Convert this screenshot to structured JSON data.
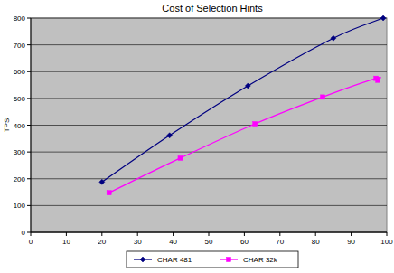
{
  "chart_data": {
    "type": "line",
    "title": "Cost of Selection Hints",
    "y_label": "TPS",
    "xlim": [
      0,
      100
    ],
    "xticks": [
      0,
      10,
      20,
      30,
      40,
      50,
      60,
      70,
      80,
      90,
      100
    ],
    "ylim": [
      0,
      800
    ],
    "yticks": [
      0,
      100,
      200,
      300,
      400,
      500,
      600,
      700,
      800
    ],
    "grid": true,
    "legend": "bottom",
    "series": [
      {
        "name": "CHAR 481",
        "color": "#000080",
        "marker": "diamond",
        "line_style": "solid",
        "x": [
          20,
          39,
          61,
          85,
          99
        ],
        "values": [
          188,
          362,
          547,
          725,
          800
        ]
      },
      {
        "name": "CHAR 32k",
        "color": "#ff00ff",
        "marker": "square",
        "line_style": "solid",
        "x": [
          22,
          42,
          63,
          82,
          97,
          97.5
        ],
        "values": [
          148,
          277,
          405,
          505,
          575,
          568
        ]
      }
    ]
  }
}
